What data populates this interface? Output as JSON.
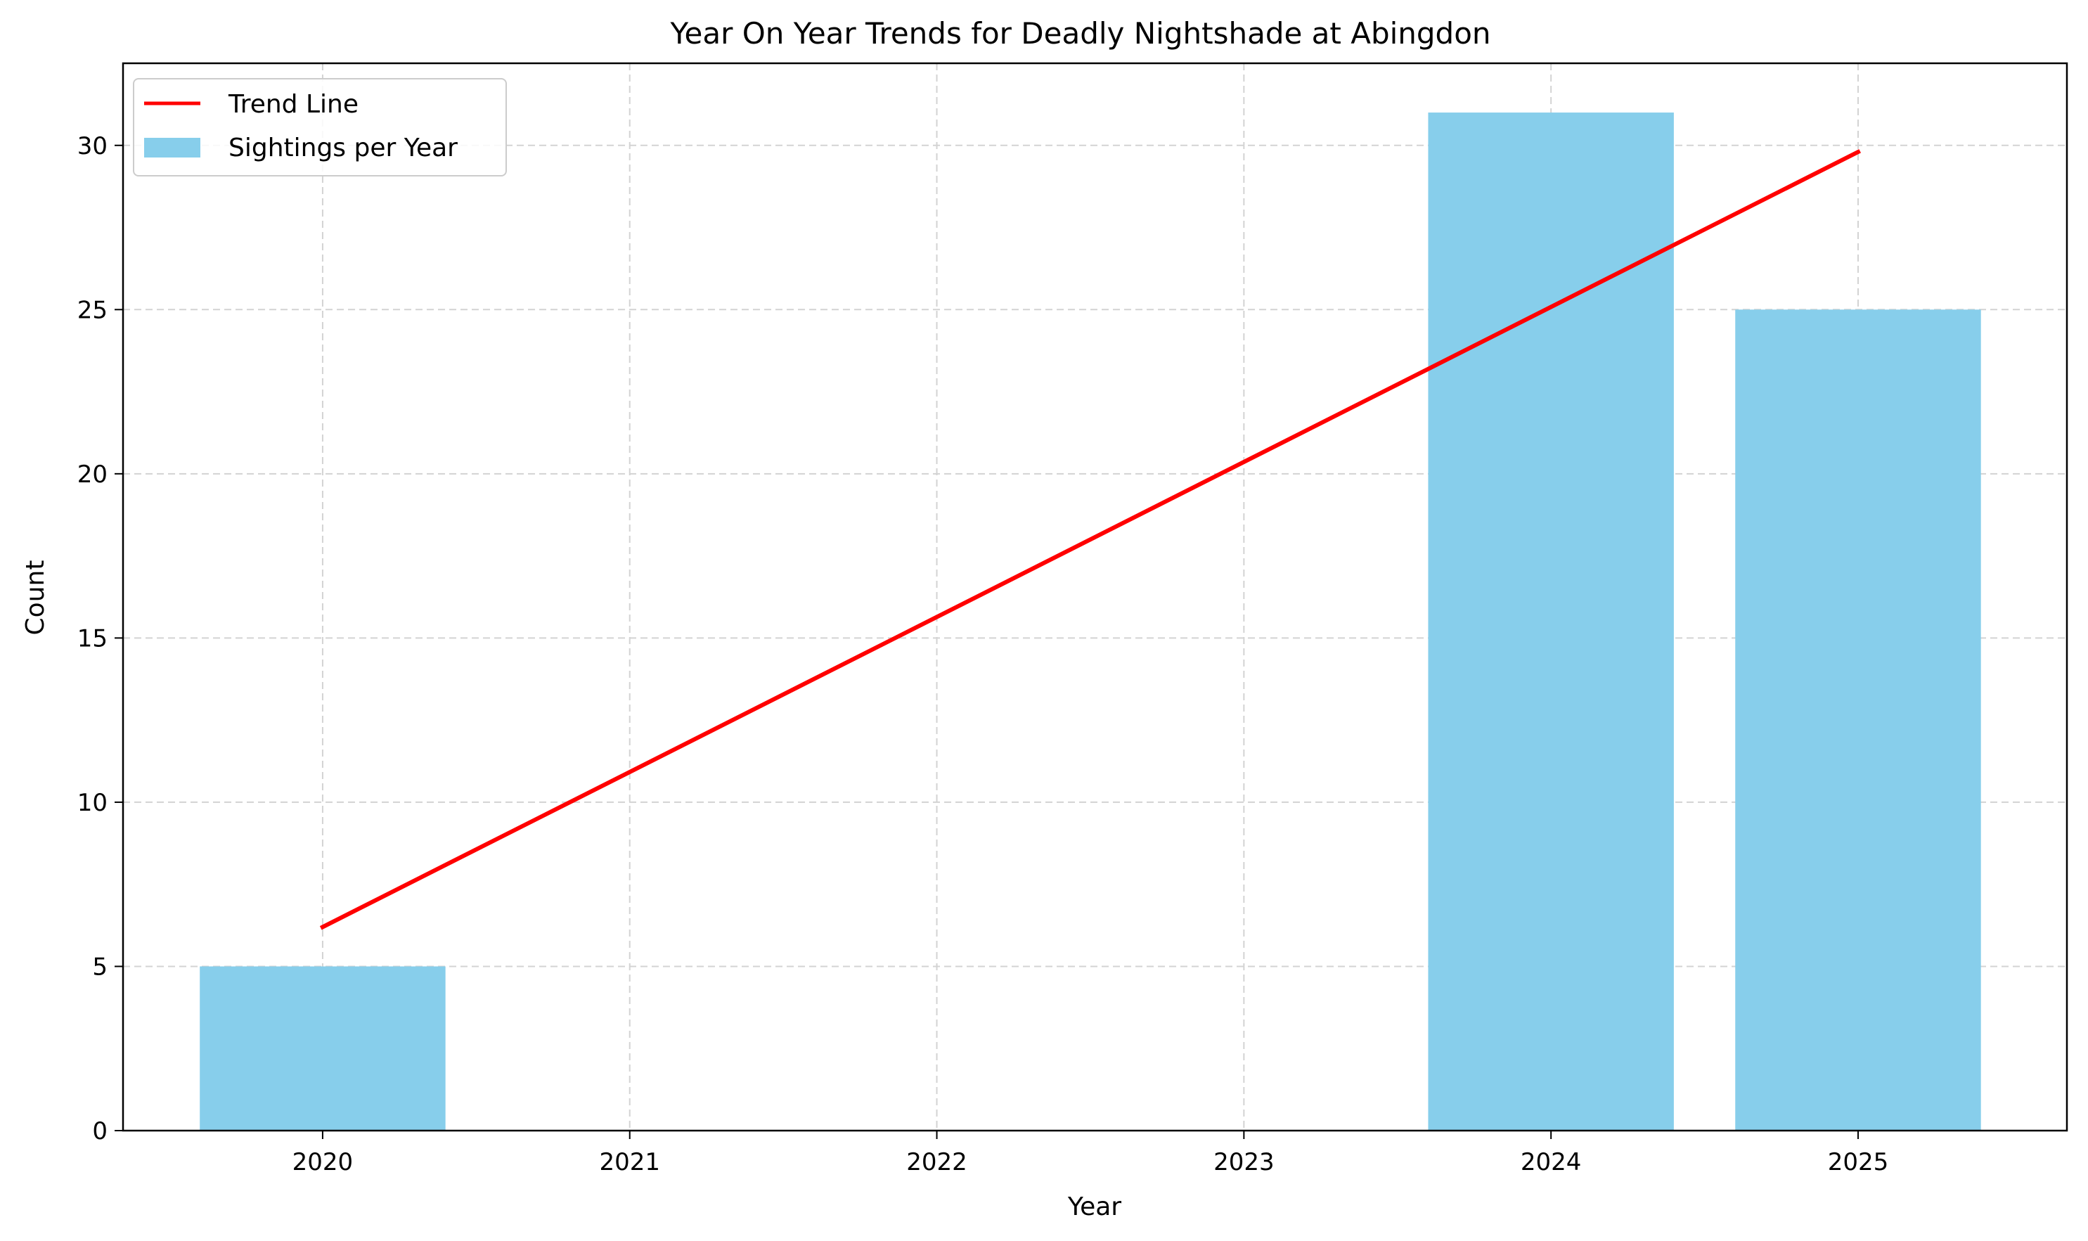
{
  "chart_data": {
    "type": "bar",
    "title": "Year On Year Trends for Deadly Nightshade at Abingdon",
    "xlabel": "Year",
    "ylabel": "Count",
    "categories": [
      "2020",
      "2021",
      "2022",
      "2023",
      "2024",
      "2025"
    ],
    "xlim": [
      2019.35,
      2025.68
    ],
    "ylim": [
      0,
      32.5
    ],
    "yticks": [
      0,
      5,
      10,
      15,
      20,
      25,
      30
    ],
    "grid": true,
    "legend_position": "top-left",
    "series": [
      {
        "name": "Sightings per Year",
        "type": "bar",
        "x": [
          2020,
          2024,
          2025
        ],
        "values": [
          5,
          31,
          25
        ],
        "color": "#87ceeb"
      },
      {
        "name": "Trend Line",
        "type": "line",
        "x": [
          2020,
          2025
        ],
        "values": [
          6.2,
          29.8
        ],
        "color": "#ff0000"
      }
    ]
  }
}
